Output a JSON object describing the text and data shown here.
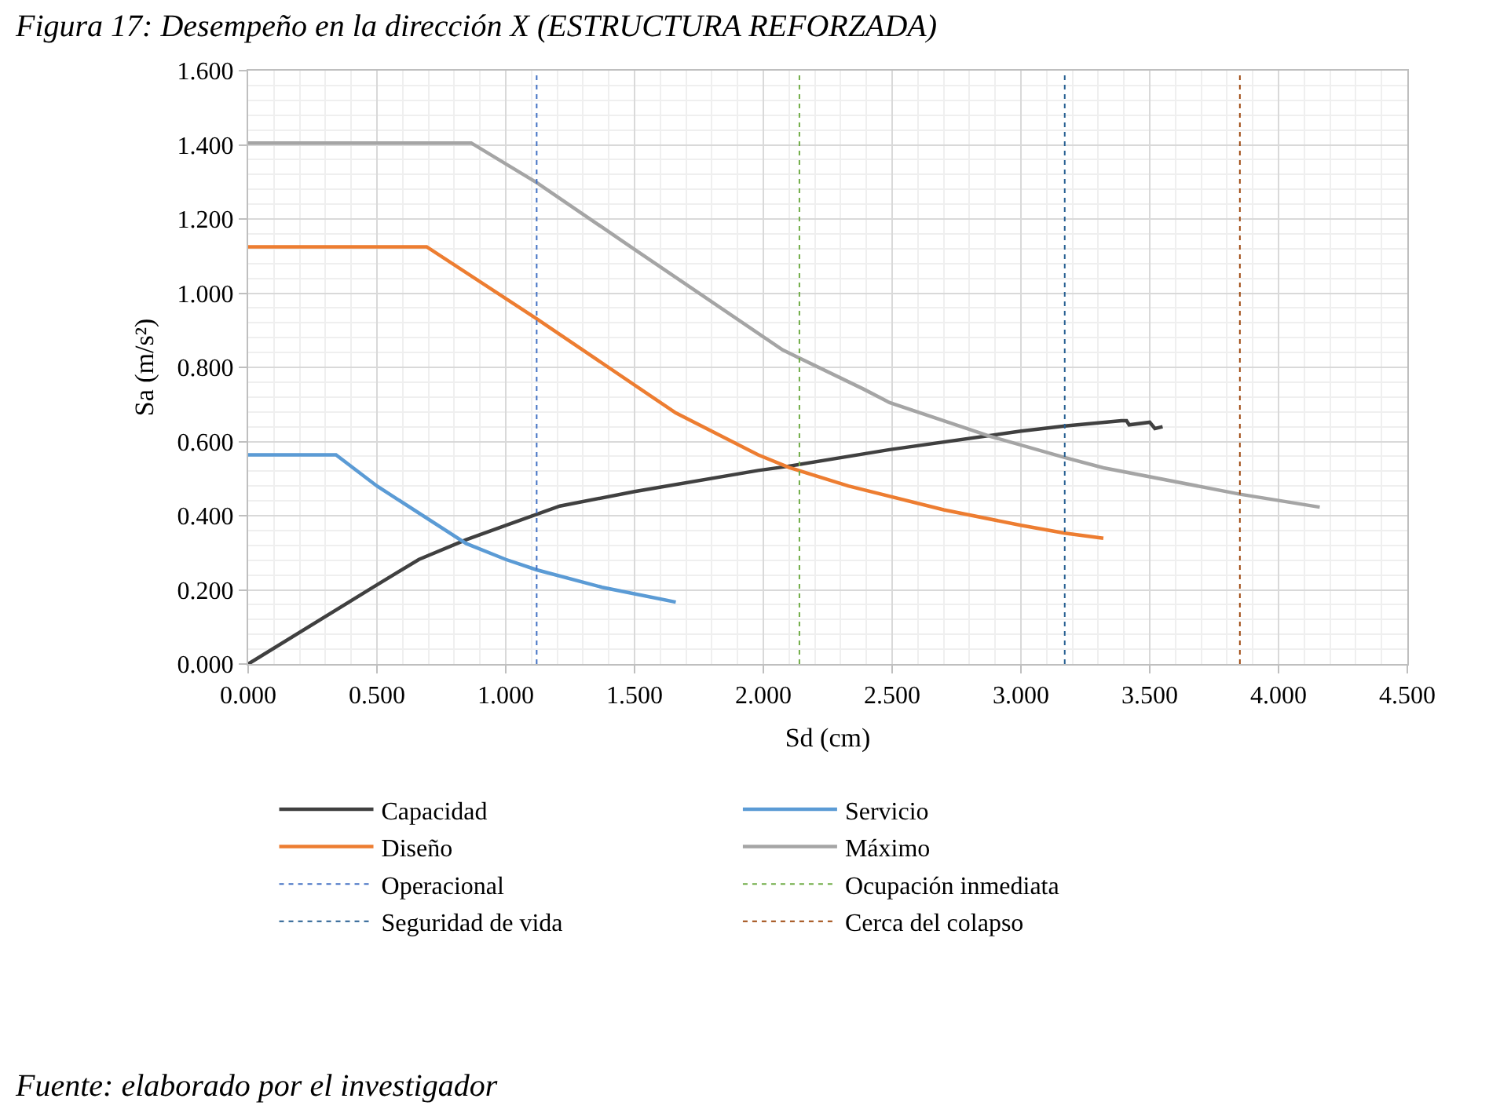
{
  "chart_data": {
    "type": "line",
    "title": "Figura 17: Desempeño en la dirección X (ESTRUCTURA REFORZADA)",
    "xlabel": "Sd (cm)",
    "ylabel": "Sa (m/s²)",
    "annotations": [
      "Fuente: elaborado por el investigador"
    ],
    "series": [
      {
        "name": "Capacidad",
        "color": "#404040",
        "x": [
          0,
          0.48,
          0.663,
          0.846,
          1.0,
          1.21,
          1.5,
          1.98,
          2.085,
          2.49,
          3.0,
          3.17,
          3.39,
          3.41,
          3.42,
          3.5,
          3.52,
          3.55
        ],
        "values": [
          0,
          0.205,
          0.282,
          0.335,
          0.374,
          0.426,
          0.465,
          0.522,
          0.532,
          0.578,
          0.628,
          0.642,
          0.656,
          0.656,
          0.645,
          0.652,
          0.635,
          0.64
        ]
      },
      {
        "name": "Servicio",
        "color": "#5b9bd5",
        "x": [
          0,
          0.341,
          0.5,
          0.846,
          1.0,
          1.12,
          1.374,
          1.66
        ],
        "values": [
          0.564,
          0.564,
          0.48,
          0.325,
          0.282,
          0.254,
          0.207,
          0.167
        ]
      },
      {
        "name": "Diseño",
        "color": "#ed7d31",
        "x": [
          0,
          0.693,
          1.12,
          1.66,
          1.98,
          2.1,
          2.33,
          2.7,
          3.0,
          3.17,
          3.32
        ],
        "values": [
          1.125,
          1.125,
          0.931,
          0.677,
          0.564,
          0.53,
          0.48,
          0.416,
          0.374,
          0.353,
          0.339
        ]
      },
      {
        "name": "Máximo",
        "color": "#a5a5a5",
        "x": [
          0,
          0.866,
          1.12,
          1.496,
          2.075,
          2.39,
          2.49,
          2.88,
          3.17,
          3.32,
          3.85,
          4.16
        ],
        "values": [
          1.405,
          1.405,
          1.298,
          1.12,
          0.847,
          0.741,
          0.705,
          0.614,
          0.557,
          0.529,
          0.458,
          0.423
        ]
      }
    ],
    "ref_lines": [
      {
        "axis": "x",
        "value": 1.12,
        "label": "Operacional",
        "color": "#4472c4",
        "line_style": "dotted"
      },
      {
        "axis": "x",
        "value": 2.14,
        "label": "Ocupación inmediata",
        "color": "#70ad47",
        "line_style": "dotted"
      },
      {
        "axis": "x",
        "value": 3.17,
        "label": "Seguridad de vida",
        "color": "#255e91",
        "line_style": "dotted"
      },
      {
        "axis": "x",
        "value": 3.85,
        "label": "Cerca del colapso",
        "color": "#9e480e",
        "line_style": "dotted"
      }
    ],
    "xlim": [
      0,
      4.5
    ],
    "xticks": [
      {
        "value": 0,
        "label": "0.000"
      },
      {
        "value": 0.5,
        "label": "0.500"
      },
      {
        "value": 1,
        "label": "1.000"
      },
      {
        "value": 1.5,
        "label": "1.500"
      },
      {
        "value": 2,
        "label": "2.000"
      },
      {
        "value": 2.5,
        "label": "2.500"
      },
      {
        "value": 3,
        "label": "3.000"
      },
      {
        "value": 3.5,
        "label": "3.500"
      },
      {
        "value": 4,
        "label": "4.000"
      },
      {
        "value": 4.5,
        "label": "4.500"
      }
    ],
    "ylim": [
      0,
      1.6
    ],
    "yticks": [
      {
        "value": 0,
        "label": "0.000"
      },
      {
        "value": 0.2,
        "label": "0.200"
      },
      {
        "value": 0.4,
        "label": "0.400"
      },
      {
        "value": 0.6,
        "label": "0.600"
      },
      {
        "value": 0.8,
        "label": "0.800"
      },
      {
        "value": 1,
        "label": "1.000"
      },
      {
        "value": 1.2,
        "label": "1.200"
      },
      {
        "value": 1.4,
        "label": "1.400"
      },
      {
        "value": 1.6,
        "label": "1.600"
      }
    ],
    "grid": true,
    "legend": "bottom",
    "marker": "none",
    "line_style": "solid"
  }
}
